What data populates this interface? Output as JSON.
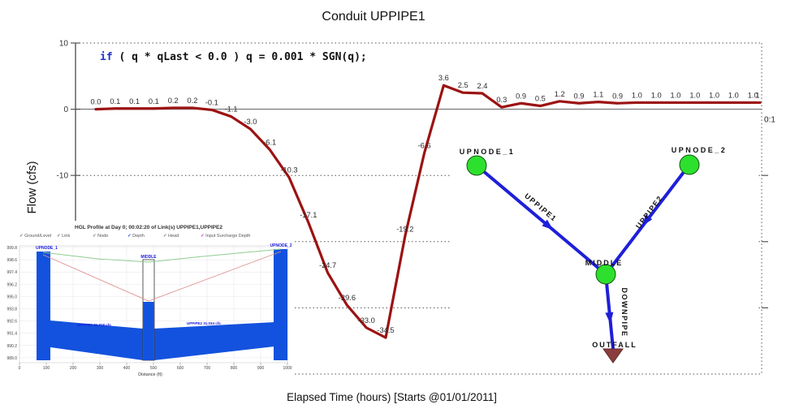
{
  "title": "Conduit UPPIPE1",
  "annotation": {
    "keyword": "if",
    "code": " ( q * qLast < 0.0 ) q = 0.001 * SGN(q);"
  },
  "chart_data": {
    "type": "line",
    "title": "Conduit UPPIPE1",
    "xlabel": "Elapsed Time (hours) [Starts @01/01/2011]",
    "ylabel": "Flow (cfs)",
    "ylim": [
      -40,
      10
    ],
    "grid": "dotted horizontal lines at 10, -10, -20, -30",
    "ytick_values": [
      10,
      0,
      -10
    ],
    "ytick_labels": [
      "10",
      "0",
      "-10"
    ],
    "gridline_values": [
      10,
      -10,
      -20,
      -30
    ],
    "right_tick_values": [
      -10,
      -20,
      -30
    ],
    "x_axis_end_label": "0:1",
    "series": [
      {
        "name": "Flow",
        "color": "#9c1212",
        "values": [
          0.0,
          0.1,
          0.1,
          0.1,
          0.2,
          0.2,
          -0.1,
          -1.1,
          -3.0,
          -6.1,
          -10.3,
          -17.1,
          -24.7,
          -29.6,
          -33.0,
          -34.5,
          -19.2,
          -6.6,
          3.6,
          2.5,
          2.4,
          0.3,
          0.9,
          0.5,
          1.2,
          0.9,
          1.1,
          0.9,
          1.0,
          1.0,
          1.0,
          1.0,
          1.0,
          1.0,
          1.0,
          1.0
        ],
        "labels": [
          "0.0",
          "0.1",
          "0.1",
          "0.1",
          "0.2",
          "0.2",
          "-0.1",
          "-1.1",
          "-3.0",
          "-6.1",
          "-10.3",
          "-17.1",
          "-24.7",
          "-29.6",
          "-33.0",
          "-34.5",
          "-19.2",
          "-6.6",
          "3.6",
          "2.5",
          "2.4",
          "0.3",
          "0.9",
          "0.5",
          "1.2",
          "0.9",
          "1.1",
          "0.9",
          "1.0",
          "1.0",
          "1.0",
          "1.0",
          "1.0",
          "1.0",
          "1.0",
          "1"
        ]
      }
    ]
  },
  "network": {
    "node_color": "#2ee02e",
    "link_color": "#1f1fd9",
    "outfall_color": "#8b3d3d",
    "nodes": [
      {
        "label": "UPNODE_1"
      },
      {
        "label": "UPNODE_2"
      },
      {
        "label": "MIDDLE"
      }
    ],
    "outfall_label": "OUTFALL",
    "links": [
      {
        "label": "UPPIPE1"
      },
      {
        "label": "UPPIPE2"
      },
      {
        "label": "DOWNPIPE"
      }
    ]
  },
  "inset": {
    "title": "HGL Profile at Day 0;  00:02:20 of Link(s) UPPIPE1,UPPIPE2",
    "legend": [
      {
        "label": "Ground/Level",
        "color": "#777777"
      },
      {
        "label": "Link",
        "color": "#777777"
      },
      {
        "label": "Node",
        "color": "#777777"
      },
      {
        "label": "Depth",
        "color": "#2244dd"
      },
      {
        "label": "Head",
        "color": "#777777"
      },
      {
        "label": "Input Surcharge Depth",
        "color": "#cc22cc"
      }
    ],
    "y_ticks": [
      "999.8",
      "998.6",
      "997.4",
      "996.2",
      "995.0",
      "993.8",
      "992.6",
      "991.4",
      "990.2",
      "989.0"
    ],
    "x_ticks": [
      "0",
      "100",
      "200",
      "300",
      "400",
      "500",
      "600",
      "700",
      "800",
      "900",
      "1000"
    ],
    "x_label": "Distance (ft)",
    "node_labels": [
      "UPNODE_1",
      "MIDDLE",
      "UPNODE_2"
    ],
    "flow_labels": [
      "UPPIPE1 31.318 cfs",
      "UPPIPE2 31.034 cfs"
    ],
    "water_color": "#1352de",
    "ground_color": "#8fcc8f",
    "head_color": "#e08f8f"
  }
}
